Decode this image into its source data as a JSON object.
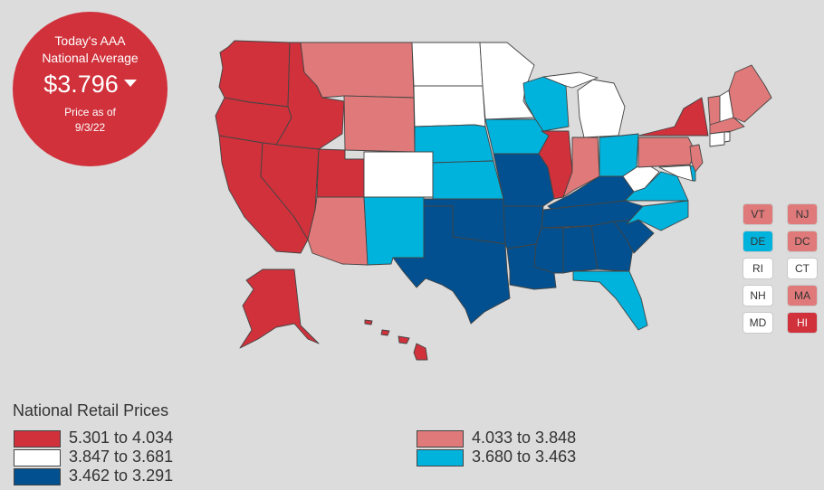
{
  "badge": {
    "line1": "Today's AAA",
    "line2": "National Average",
    "price": "$3.796",
    "line3": "Price as of",
    "date": "9/3/22"
  },
  "colors": {
    "tier1": "#d0313b",
    "tier2": "#e07a7a",
    "tier3": "#ffffff",
    "tier4": "#00b3dd",
    "tier5": "#02508f"
  },
  "small_states": [
    {
      "label": "VT",
      "tier": 2
    },
    {
      "label": "NJ",
      "tier": 2
    },
    {
      "label": "DE",
      "tier": 4
    },
    {
      "label": "DC",
      "tier": 2
    },
    {
      "label": "RI",
      "tier": 3
    },
    {
      "label": "CT",
      "tier": 3
    },
    {
      "label": "NH",
      "tier": 3
    },
    {
      "label": "MA",
      "tier": 2
    },
    {
      "label": "MD",
      "tier": 3
    },
    {
      "label": "HI",
      "tier": 1
    }
  ],
  "legend": {
    "title": "National Retail Prices",
    "items": [
      {
        "label": "5.301 to 4.034",
        "tier": 1
      },
      {
        "label": "4.033 to 3.848",
        "tier": 2
      },
      {
        "label": "3.847 to 3.681",
        "tier": 3
      },
      {
        "label": "3.680 to 3.463",
        "tier": 4
      },
      {
        "label": "3.462 to 3.291",
        "tier": 5
      }
    ]
  },
  "states": {
    "WA": 1,
    "OR": 1,
    "CA": 1,
    "NV": 1,
    "ID": 1,
    "UT": 1,
    "AK": 1,
    "HI": 1,
    "IL": 1,
    "NY": 1,
    "MT": 2,
    "WY": 2,
    "AZ": 2,
    "IN": 2,
    "PA": 2,
    "ME": 2,
    "VT": 2,
    "NJ": 2,
    "MA": 2,
    "ND": 3,
    "SD": 3,
    "MN": 3,
    "CO": 3,
    "MI": 3,
    "WV": 3,
    "NH": 3,
    "CT": 3,
    "RI": 3,
    "MD": 3,
    "NE": 4,
    "KS": 4,
    "IA": 4,
    "WI": 4,
    "NM": 4,
    "OH": 4,
    "VA": 4,
    "NC": 4,
    "FL": 4,
    "DE": 4,
    "TX": 5,
    "OK": 5,
    "MO": 5,
    "AR": 5,
    "LA": 5,
    "MS": 5,
    "AL": 5,
    "GA": 5,
    "TN": 5,
    "KY": 5,
    "SC": 5
  }
}
